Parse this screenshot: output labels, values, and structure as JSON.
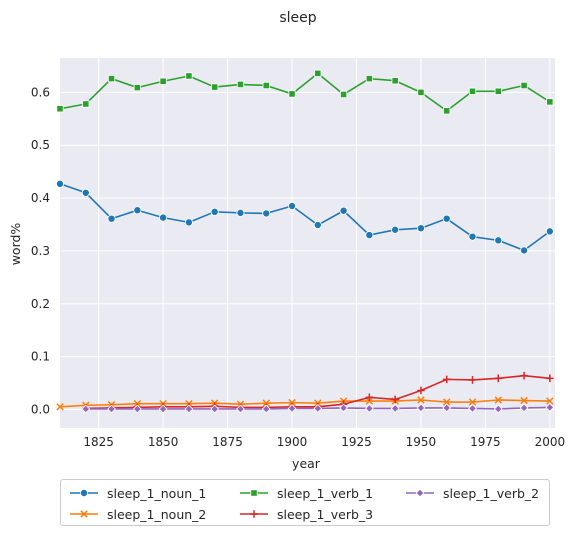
{
  "chart_data": {
    "type": "line",
    "title": "sleep",
    "xlabel": "year",
    "ylabel": "word%",
    "xlim": [
      1810,
      2002
    ],
    "ylim": [
      -0.035,
      0.665
    ],
    "xticks": [
      1825,
      1850,
      1875,
      1900,
      1925,
      1950,
      1975,
      2000
    ],
    "yticks": [
      0.0,
      0.1,
      0.2,
      0.3,
      0.4,
      0.5,
      0.6
    ],
    "ytick_labels": [
      "0.0",
      "0.1",
      "0.2",
      "0.3",
      "0.4",
      "0.5",
      "0.6"
    ],
    "grid": true,
    "legend_position": "bottom-center",
    "x": [
      1810,
      1820,
      1830,
      1840,
      1850,
      1860,
      1870,
      1880,
      1890,
      1900,
      1910,
      1920,
      1930,
      1940,
      1950,
      1960,
      1970,
      1980,
      1990,
      2000
    ],
    "series": [
      {
        "name": "sleep_1_noun_1",
        "color": "#1f77b4",
        "marker": "circle",
        "values": [
          0.427,
          0.41,
          0.361,
          0.377,
          0.363,
          0.354,
          0.374,
          0.372,
          0.371,
          0.385,
          0.349,
          0.376,
          0.33,
          0.34,
          0.343,
          0.361,
          0.327,
          0.32,
          0.301,
          0.337
        ]
      },
      {
        "name": "sleep_1_noun_2",
        "color": "#ff7f0e",
        "marker": "x",
        "values": [
          0.005,
          0.008,
          0.009,
          0.011,
          0.011,
          0.011,
          0.012,
          0.01,
          0.012,
          0.013,
          0.012,
          0.016,
          0.016,
          0.016,
          0.018,
          0.014,
          0.014,
          0.018,
          0.017,
          0.016
        ]
      },
      {
        "name": "sleep_1_verb_1",
        "color": "#2ca02c",
        "marker": "square",
        "values": [
          0.569,
          0.578,
          0.626,
          0.609,
          0.621,
          0.631,
          0.61,
          0.615,
          0.613,
          0.597,
          0.636,
          0.596,
          0.626,
          0.622,
          0.6,
          0.565,
          0.602,
          0.602,
          0.613,
          0.582
        ]
      },
      {
        "name": "sleep_1_verb_3",
        "color": "#d62728",
        "marker": "plus",
        "values": [
          null,
          0.002,
          0.003,
          0.004,
          0.005,
          0.005,
          0.006,
          0.004,
          0.004,
          0.005,
          0.005,
          0.01,
          0.023,
          0.019,
          0.036,
          0.057,
          0.056,
          0.059,
          0.064,
          0.059
        ]
      },
      {
        "name": "sleep_1_verb_2",
        "color": "#9467bd",
        "marker": "diamond",
        "values": [
          null,
          0.001,
          0.001,
          0.001,
          0.001,
          0.001,
          0.001,
          0.001,
          0.001,
          0.002,
          0.002,
          0.003,
          0.002,
          0.002,
          0.003,
          0.003,
          0.002,
          0.001,
          0.003,
          0.004
        ]
      }
    ]
  }
}
